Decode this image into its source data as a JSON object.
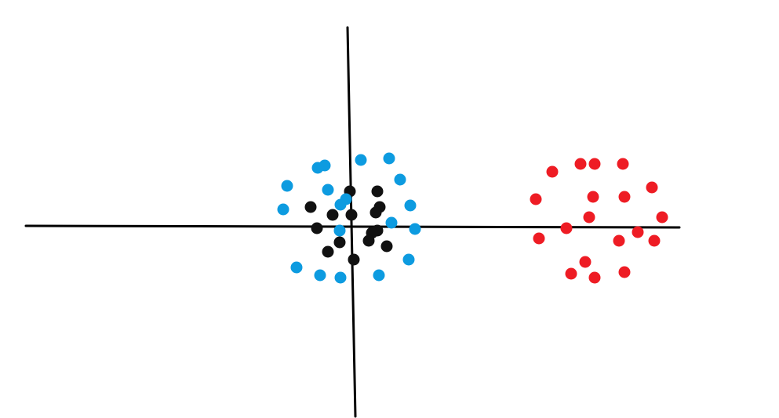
{
  "chart_data": {
    "type": "scatter",
    "title": "",
    "xlabel": "",
    "ylabel": "",
    "xlim": [
      -4.1,
      4.2
    ],
    "ylim": [
      -2.45,
      2.55
    ],
    "grid": false,
    "series": [
      {
        "color": "#111111",
        "points": [
          [
            0.0,
            0.45
          ],
          [
            0.35,
            0.45
          ],
          [
            -0.5,
            0.25
          ],
          [
            -0.22,
            0.15
          ],
          [
            0.02,
            0.15
          ],
          [
            0.38,
            0.25
          ],
          [
            0.33,
            0.18
          ],
          [
            -0.42,
            -0.02
          ],
          [
            0.35,
            -0.05
          ],
          [
            0.28,
            -0.08
          ],
          [
            0.24,
            -0.18
          ],
          [
            -0.13,
            -0.2
          ],
          [
            -0.28,
            -0.32
          ],
          [
            0.47,
            -0.25
          ],
          [
            0.05,
            -0.42
          ]
        ]
      },
      {
        "color": "#0d9be0",
        "points": [
          [
            0.14,
            0.85
          ],
          [
            0.5,
            0.87
          ],
          [
            -0.32,
            0.78
          ],
          [
            -0.41,
            0.75
          ],
          [
            0.64,
            0.6
          ],
          [
            -0.8,
            0.52
          ],
          [
            -0.28,
            0.47
          ],
          [
            -0.05,
            0.35
          ],
          [
            0.77,
            0.27
          ],
          [
            -0.85,
            0.22
          ],
          [
            -0.12,
            0.28
          ],
          [
            0.53,
            0.05
          ],
          [
            -0.13,
            -0.05
          ],
          [
            0.83,
            -0.03
          ],
          [
            0.75,
            -0.42
          ],
          [
            -0.68,
            -0.52
          ],
          [
            -0.38,
            -0.62
          ],
          [
            -0.12,
            -0.65
          ],
          [
            0.37,
            -0.62
          ]
        ]
      },
      {
        "color": "#ee1c24",
        "points": [
          [
            2.58,
            0.7
          ],
          [
            2.94,
            0.8
          ],
          [
            3.12,
            0.8
          ],
          [
            3.48,
            0.8
          ],
          [
            3.85,
            0.5
          ],
          [
            2.37,
            0.35
          ],
          [
            3.1,
            0.38
          ],
          [
            3.5,
            0.38
          ],
          [
            3.05,
            0.12
          ],
          [
            3.98,
            0.12
          ],
          [
            2.76,
            -0.02
          ],
          [
            3.67,
            -0.07
          ],
          [
            2.41,
            -0.15
          ],
          [
            3.43,
            -0.18
          ],
          [
            3.88,
            -0.18
          ],
          [
            3.0,
            -0.45
          ],
          [
            2.82,
            -0.6
          ],
          [
            3.12,
            -0.65
          ],
          [
            3.5,
            -0.58
          ]
        ]
      }
    ]
  }
}
